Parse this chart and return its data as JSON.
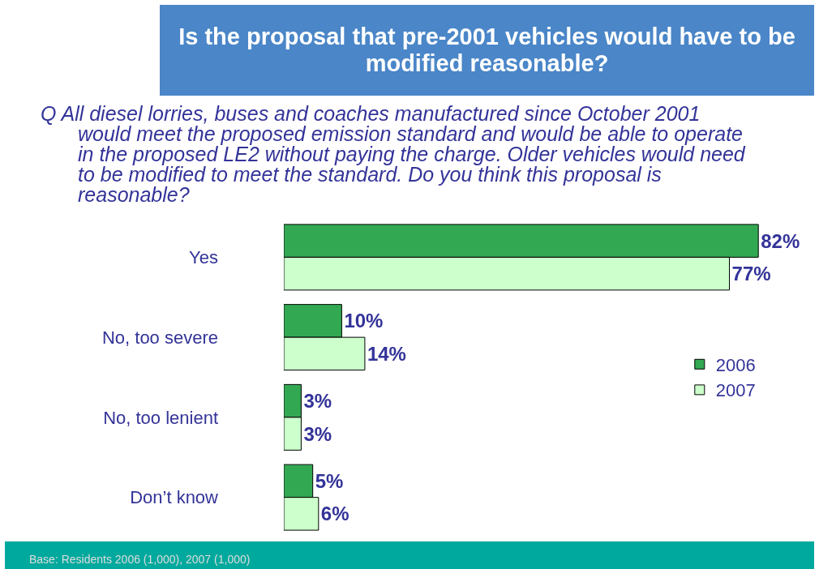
{
  "chart_data": {
    "type": "bar",
    "orientation": "horizontal",
    "title": "Is the proposal that pre-2001 vehicles would have to be modified reasonable?",
    "subtitle": "Q  All diesel lorries, buses and coaches manufactured since October 2001 would meet the proposed emission standard and would be able to operate in the proposed LE2 without paying the charge. Older vehicles would need to be modified to meet the standard. Do you think this proposal is reasonable?",
    "categories": [
      "Yes",
      "No, too severe",
      "No, too lenient",
      "Don’t know"
    ],
    "series": [
      {
        "name": "2006",
        "color": "#33a852",
        "values": [
          82,
          10,
          3,
          5
        ],
        "value_labels": [
          "82%",
          "10%",
          "3%",
          "5%"
        ]
      },
      {
        "name": "2007",
        "color": "#ccffcc",
        "values": [
          77,
          14,
          3,
          6
        ],
        "value_labels": [
          "77%",
          "14%",
          "3%",
          "6%"
        ]
      }
    ],
    "tick_labels": "y",
    "grid": false,
    "legend": "right",
    "annotations": [
      "Base: Residents 2006 (1,000), 2007 (1,000)"
    ]
  }
}
